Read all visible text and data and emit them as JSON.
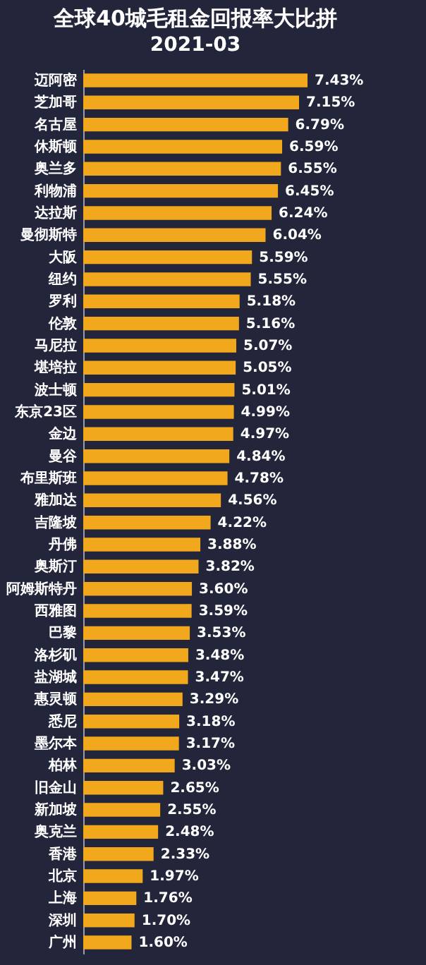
{
  "chart_data": {
    "type": "bar",
    "orientation": "horizontal",
    "title": "全球40城毛租金回报率大比拼",
    "subtitle": "2021-03",
    "categories": [
      "迈阿密",
      "芝加哥",
      "名古屋",
      "休斯顿",
      "奥兰多",
      "利物浦",
      "达拉斯",
      "曼彻斯特",
      "大阪",
      "纽约",
      "罗利",
      "伦敦",
      "马尼拉",
      "堪培拉",
      "波士顿",
      "东京23区",
      "金边",
      "曼谷",
      "布里斯班",
      "雅加达",
      "吉隆坡",
      "丹佛",
      "奥斯汀",
      "阿姆斯特丹",
      "西雅图",
      "巴黎",
      "洛杉矶",
      "盐湖城",
      "惠灵顿",
      "悉尼",
      "墨尔本",
      "柏林",
      "旧金山",
      "新加坡",
      "奥克兰",
      "香港",
      "北京",
      "上海",
      "深圳",
      "广州"
    ],
    "values": [
      7.43,
      7.15,
      6.79,
      6.59,
      6.55,
      6.45,
      6.24,
      6.04,
      5.59,
      5.55,
      5.18,
      5.16,
      5.07,
      5.05,
      5.01,
      4.99,
      4.97,
      4.84,
      4.78,
      4.56,
      4.22,
      3.88,
      3.82,
      3.6,
      3.59,
      3.53,
      3.48,
      3.47,
      3.29,
      3.18,
      3.17,
      3.03,
      2.65,
      2.55,
      2.48,
      2.33,
      1.97,
      1.76,
      1.7,
      1.6
    ],
    "value_labels": [
      "7.43%",
      "7.15%",
      "6.79%",
      "6.59%",
      "6.55%",
      "6.45%",
      "6.24%",
      "6.04%",
      "5.59%",
      "5.55%",
      "5.18%",
      "5.16%",
      "5.07%",
      "5.05%",
      "5.01%",
      "4.99%",
      "4.97%",
      "4.84%",
      "4.78%",
      "4.56%",
      "4.22%",
      "3.88%",
      "3.82%",
      "3.60%",
      "3.59%",
      "3.53%",
      "3.48%",
      "3.47%",
      "3.29%",
      "3.18%",
      "3.17%",
      "3.03%",
      "2.65%",
      "2.55%",
      "2.48%",
      "2.33%",
      "1.97%",
      "1.76%",
      "1.70%",
      "1.60%"
    ],
    "color": "#f2a81d",
    "tick_labels": "y"
  }
}
